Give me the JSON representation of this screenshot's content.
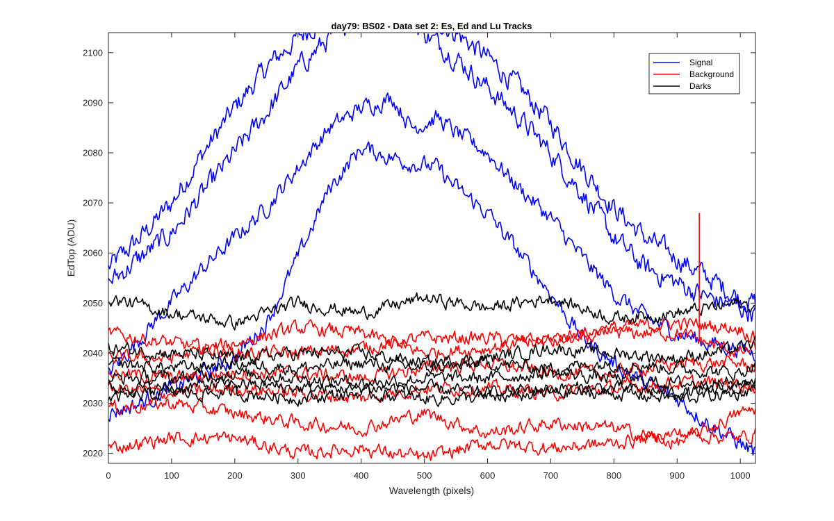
{
  "chart_data": {
    "type": "line",
    "title": "day79: BS02 - Data set 2: Es, Ed and Lu Tracks",
    "xlabel": "Wavelength (pixels)",
    "ylabel": "EdTop (ADU)",
    "xlim": [
      0,
      1024
    ],
    "ylim": [
      2018,
      2104
    ],
    "xticks": [
      0,
      100,
      200,
      300,
      400,
      500,
      600,
      700,
      800,
      900,
      1000
    ],
    "yticks": [
      2020,
      2030,
      2040,
      2050,
      2060,
      2070,
      2080,
      2090,
      2100
    ],
    "grid": false,
    "legend": {
      "placement": "top-right",
      "entries": [
        {
          "label": "Signal",
          "color": "#0000ff"
        },
        {
          "label": "Background",
          "color": "#ff0000"
        },
        {
          "label": "Darks",
          "color": "#000000"
        }
      ]
    },
    "series": [
      {
        "group": "Signal",
        "color": "#0000ff",
        "x": [
          0,
          50,
          100,
          150,
          200,
          250,
          300,
          350,
          400,
          450,
          500,
          550,
          600,
          650,
          700,
          750,
          800,
          850,
          900,
          950,
          1000,
          1024
        ],
        "y": [
          2057,
          2063,
          2070,
          2080,
          2089,
          2097,
          2103,
          2108,
          2112,
          2112,
          2108,
          2104,
          2099,
          2093,
          2086,
          2077,
          2069,
          2063,
          2059,
          2055,
          2051,
          2050
        ],
        "noise": 2.5
      },
      {
        "group": "Signal",
        "color": "#0000ff",
        "x": [
          0,
          50,
          100,
          150,
          200,
          250,
          300,
          350,
          400,
          450,
          500,
          550,
          600,
          650,
          700,
          750,
          800,
          850,
          900,
          950,
          1000,
          1024
        ],
        "y": [
          2054,
          2059,
          2064,
          2072,
          2080,
          2088,
          2097,
          2103,
          2108,
          2110,
          2104,
          2099,
          2093,
          2087,
          2080,
          2072,
          2063,
          2057,
          2054,
          2051,
          2049,
          2048
        ],
        "noise": 2.5
      },
      {
        "group": "Signal",
        "color": "#0000ff",
        "x": [
          0,
          50,
          100,
          150,
          200,
          250,
          300,
          350,
          400,
          450,
          480,
          520,
          550,
          600,
          650,
          700,
          750,
          800,
          850,
          900,
          950,
          1000,
          1024
        ],
        "y": [
          2036,
          2043,
          2050,
          2057,
          2063,
          2069,
          2077,
          2085,
          2089,
          2091,
          2085,
          2087,
          2084,
          2080,
          2073,
          2067,
          2059,
          2052,
          2047,
          2044,
          2042,
          2041,
          2040
        ],
        "noise": 2.0
      },
      {
        "group": "Signal",
        "color": "#0000ff",
        "x": [
          0,
          50,
          100,
          150,
          200,
          250,
          300,
          350,
          400,
          450,
          480,
          520,
          550,
          600,
          650,
          700,
          750,
          800,
          850,
          900,
          950,
          1000,
          1024
        ],
        "y": [
          2028,
          2030,
          2033,
          2036,
          2039,
          2046,
          2059,
          2073,
          2081,
          2079,
          2078,
          2077,
          2073,
          2068,
          2060,
          2052,
          2043,
          2038,
          2034,
          2031,
          2026,
          2022,
          2020
        ],
        "noise": 2.0
      },
      {
        "group": "Background",
        "color": "#ff0000",
        "x": [
          0,
          100,
          200,
          300,
          400,
          500,
          600,
          700,
          800,
          900,
          1000,
          1024
        ],
        "y": [
          2044,
          2042,
          2040,
          2040,
          2041,
          2043,
          2043,
          2042,
          2044,
          2044,
          2040,
          2041
        ],
        "noise": 1.6
      },
      {
        "group": "Background",
        "color": "#ff0000",
        "x": [
          0,
          100,
          200,
          300,
          400,
          500,
          600,
          700,
          800,
          900,
          1000,
          1024
        ],
        "y": [
          2039,
          2039,
          2042,
          2045,
          2044,
          2040,
          2041,
          2043,
          2045,
          2046,
          2045,
          2043
        ],
        "noise": 1.6
      },
      {
        "group": "Background",
        "color": "#ff0000",
        "x": [
          0,
          100,
          200,
          300,
          400,
          500,
          600,
          700,
          800,
          900,
          1000,
          1024
        ],
        "y": [
          2036,
          2035,
          2036,
          2036,
          2035,
          2037,
          2038,
          2036,
          2036,
          2038,
          2038,
          2037
        ],
        "noise": 1.6
      },
      {
        "group": "Background",
        "color": "#ff0000",
        "x": [
          0,
          100,
          200,
          300,
          400,
          500,
          600,
          700,
          800,
          900,
          1000,
          1024
        ],
        "y": [
          2033,
          2032,
          2033,
          2032,
          2031,
          2033,
          2033,
          2032,
          2033,
          2034,
          2034,
          2033
        ],
        "noise": 1.6
      },
      {
        "group": "Background",
        "color": "#ff0000",
        "x": [
          0,
          100,
          200,
          300,
          400,
          500,
          600,
          700,
          800,
          900,
          1000,
          1024
        ],
        "y": [
          2029,
          2030,
          2028,
          2026,
          2025,
          2028,
          2024,
          2026,
          2025,
          2022,
          2028,
          2029
        ],
        "noise": 1.6
      },
      {
        "group": "Background",
        "color": "#ff0000",
        "x": [
          0,
          100,
          200,
          300,
          400,
          500,
          600,
          700,
          800,
          900,
          1000,
          1024
        ],
        "y": [
          2021,
          2023,
          2023,
          2020,
          2021,
          2019,
          2022,
          2021,
          2022,
          2024,
          2023,
          2024
        ],
        "noise": 1.6
      },
      {
        "group": "Darks",
        "color": "#000000",
        "x": [
          0,
          100,
          200,
          300,
          400,
          500,
          600,
          700,
          800,
          900,
          1000,
          1024
        ],
        "y": [
          2051,
          2048,
          2046,
          2050,
          2048,
          2051,
          2049,
          2051,
          2047,
          2048,
          2050,
          2049
        ],
        "noise": 1.5
      },
      {
        "group": "Darks",
        "color": "#000000",
        "x": [
          0,
          100,
          200,
          300,
          400,
          500,
          600,
          700,
          800,
          900,
          1000,
          1024
        ],
        "y": [
          2041,
          2040,
          2039,
          2040,
          2040,
          2038,
          2039,
          2041,
          2040,
          2039,
          2041,
          2042
        ],
        "noise": 1.5
      },
      {
        "group": "Darks",
        "color": "#000000",
        "x": [
          0,
          100,
          200,
          300,
          400,
          500,
          600,
          700,
          800,
          900,
          1000,
          1024
        ],
        "y": [
          2038,
          2037,
          2038,
          2037,
          2038,
          2037,
          2038,
          2037,
          2038,
          2037,
          2036,
          2038
        ],
        "noise": 1.5
      },
      {
        "group": "Darks",
        "color": "#000000",
        "x": [
          0,
          100,
          200,
          300,
          400,
          500,
          600,
          700,
          800,
          900,
          1000,
          1024
        ],
        "y": [
          2035,
          2035,
          2036,
          2035,
          2034,
          2035,
          2035,
          2036,
          2035,
          2034,
          2034,
          2035
        ],
        "noise": 1.5
      },
      {
        "group": "Darks",
        "color": "#000000",
        "x": [
          0,
          100,
          200,
          300,
          400,
          500,
          600,
          700,
          800,
          900,
          1000,
          1024
        ],
        "y": [
          2033,
          2033,
          2034,
          2033,
          2033,
          2033,
          2032,
          2033,
          2033,
          2032,
          2033,
          2034
        ],
        "noise": 1.5
      },
      {
        "group": "Darks",
        "color": "#000000",
        "x": [
          0,
          100,
          200,
          300,
          400,
          500,
          600,
          700,
          800,
          900,
          1000,
          1024
        ],
        "y": [
          2031,
          2032,
          2032,
          2031,
          2032,
          2031,
          2031,
          2032,
          2032,
          2031,
          2032,
          2033
        ],
        "noise": 1.5
      }
    ],
    "annotations": [
      {
        "type": "spike",
        "group": "Background",
        "color": "#ff0000",
        "x": 935,
        "y_from": 2043,
        "y_to": 2068
      }
    ]
  }
}
